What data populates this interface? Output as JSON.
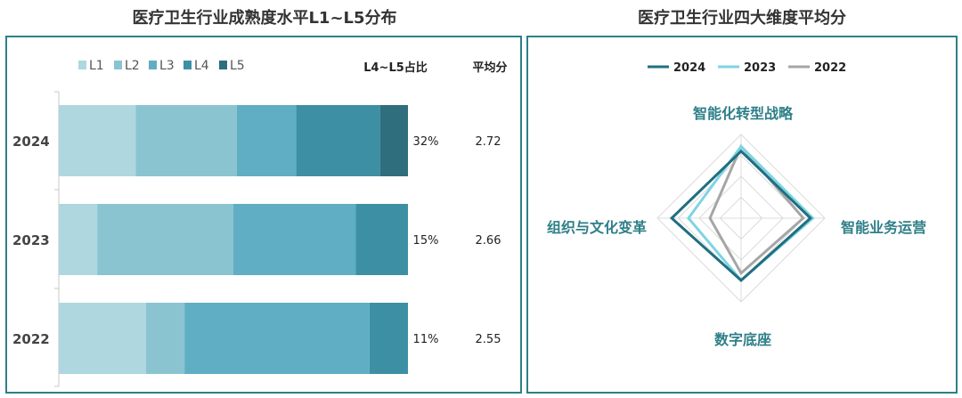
{
  "left_title": "医疗卫生行业成熟度水平L1~L5分布",
  "right_title": "医疗卫生行业四大维度平均分",
  "col_share_header": "L4~L5占比",
  "col_avg_header": "平均分",
  "colors": {
    "levels": [
      "#aed7e0",
      "#8ac4d1",
      "#60aec3",
      "#3d90a4",
      "#2f6e7d"
    ],
    "frame": "#2e7f88",
    "radar_2024": "#1f6f80",
    "radar_2023": "#7fd4e2",
    "radar_2022": "#a6a6a6",
    "axis_label": "#2e7f88"
  },
  "chart_data": [
    {
      "type": "bar",
      "orientation": "horizontal",
      "stacked": true,
      "title": "医疗卫生行业成熟度水平L1~L5分布",
      "categories": [
        "2024",
        "2023",
        "2022"
      ],
      "series": [
        {
          "name": "L1",
          "values": [
            22,
            11,
            25
          ]
        },
        {
          "name": "L2",
          "values": [
            29,
            39,
            11
          ]
        },
        {
          "name": "L3",
          "values": [
            17,
            35,
            53
          ]
        },
        {
          "name": "L4",
          "values": [
            24,
            15,
            11
          ]
        },
        {
          "name": "L5",
          "values": [
            8,
            0,
            0
          ]
        }
      ],
      "share_labels": [
        "32%",
        "15%",
        "11%"
      ],
      "avg_labels": [
        "2.72",
        "2.66",
        "2.55"
      ],
      "xlim": [
        0,
        100
      ],
      "legend": "top"
    },
    {
      "type": "radar",
      "title": "医疗卫生行业四大维度平均分",
      "axes": [
        "智能化转型战略",
        "智能业务运营",
        "数字底座",
        "组织与文化变革"
      ],
      "series": [
        {
          "name": "2024",
          "values": [
            2.8,
            2.9,
            2.6,
            2.9
          ]
        },
        {
          "name": "2023",
          "values": [
            3.0,
            3.0,
            2.6,
            2.2
          ]
        },
        {
          "name": "2022",
          "values": [
            3.0,
            2.6,
            2.3,
            1.3
          ]
        }
      ],
      "rmax": 3.5,
      "rings": 4,
      "legend": "top"
    }
  ]
}
